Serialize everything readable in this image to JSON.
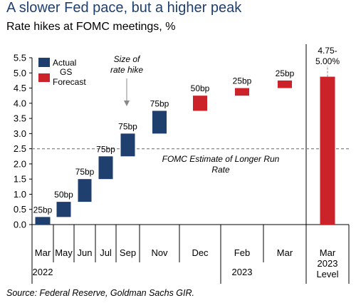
{
  "title": "A slower Fed pace, but a higher peak",
  "subtitle": "Rate hikes at FOMC meetings, %",
  "source": "Source: Federal Reserve, Goldman Sachs GIR.",
  "colors": {
    "actual": "#1f3f6e",
    "forecast": "#cc2229",
    "title": "#1f3f6e",
    "reference": "#888888"
  },
  "chart_data": {
    "type": "bar",
    "subtype": "floating-waterfall",
    "ylim": [
      0.0,
      5.5
    ],
    "yticks": [
      "0.0",
      "0.5",
      "1.0",
      "1.5",
      "2.0",
      "2.5",
      "3.0",
      "3.5",
      "4.0",
      "4.5",
      "5.0",
      "5.5"
    ],
    "grid": false,
    "legend_position": "top-left",
    "legend": [
      {
        "label": "Actual",
        "color": "#1f3f6e"
      },
      {
        "label": "GS Forecast",
        "color": "#cc2229"
      }
    ],
    "categories": [
      "Mar",
      "May",
      "Jun",
      "Jul",
      "Sep",
      "Nov",
      "Dec",
      "Feb",
      "Mar",
      "Mar 2023 Level"
    ],
    "year_labels": [
      {
        "text": "2022",
        "under": "Mar"
      },
      {
        "text": "2023",
        "under": "Feb"
      }
    ],
    "bars": [
      {
        "category": "Mar",
        "low": 0.0,
        "high": 0.25,
        "label": "25bp",
        "kind": "actual"
      },
      {
        "category": "May",
        "low": 0.25,
        "high": 0.75,
        "label": "50bp",
        "kind": "actual"
      },
      {
        "category": "Jun",
        "low": 0.75,
        "high": 1.5,
        "label": "75bp",
        "kind": "actual"
      },
      {
        "category": "Jul",
        "low": 1.5,
        "high": 2.25,
        "label": "75bp",
        "kind": "actual"
      },
      {
        "category": "Sep",
        "low": 2.25,
        "high": 3.0,
        "label": "75bp",
        "kind": "actual"
      },
      {
        "category": "Nov",
        "low": 3.0,
        "high": 3.75,
        "label": "75bp",
        "kind": "actual"
      },
      {
        "category": "Dec",
        "low": 3.75,
        "high": 4.25,
        "label": "50bp",
        "kind": "forecast"
      },
      {
        "category": "Feb",
        "low": 4.25,
        "high": 4.5,
        "label": "25bp",
        "kind": "forecast"
      },
      {
        "category": "Mar",
        "low": 4.5,
        "high": 4.75,
        "label": "25bp",
        "kind": "forecast"
      },
      {
        "category": "Mar 2023 Level",
        "low": 0.0,
        "high": 4.875,
        "label": "4.75-5.00%",
        "kind": "forecast"
      }
    ],
    "reference_line": {
      "y": 2.5,
      "label": "FOMC Estimate of Longer Run Rate"
    },
    "annotation": {
      "text": "Size of rate hike",
      "points_to": "Sep"
    }
  }
}
